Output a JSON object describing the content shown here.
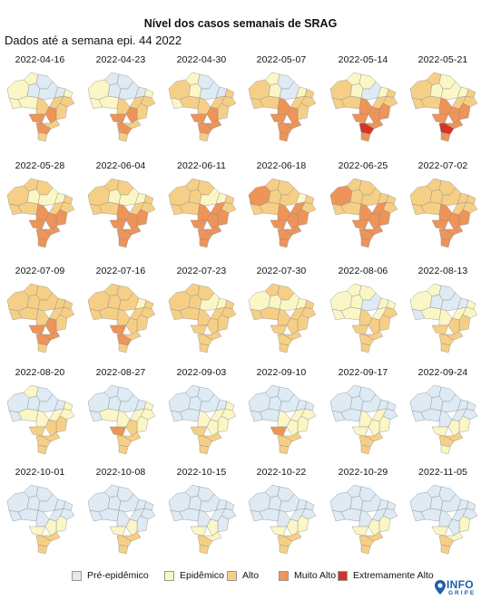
{
  "title": "Nível dos casos semanais de SRAG",
  "subtitle": "Dados até a semana epi. 44 2022",
  "legend": [
    {
      "label": "Pré-epidêmico",
      "color": "#deeaf4"
    },
    {
      "label": "Epidêmico",
      "color": "#fbf6c6"
    },
    {
      "label": "Alto",
      "color": "#f6cf86"
    },
    {
      "label": "Muito Alto",
      "color": "#ee9459"
    },
    {
      "label": "Extremamente Alto",
      "color": "#d3342a"
    }
  ],
  "logo": {
    "word1": "INFO",
    "word2": "GRIPE"
  },
  "maps": [
    {
      "date": "2022-04-16",
      "region_levels": [
        1,
        1,
        0,
        0,
        0,
        0,
        1,
        2,
        2,
        2,
        1,
        1,
        2,
        3,
        3,
        2,
        3,
        2
      ]
    },
    {
      "date": "2022-04-23",
      "region_levels": [
        1,
        0,
        0,
        0,
        0,
        0,
        1,
        2,
        2,
        2,
        1,
        1,
        2,
        3,
        3,
        2,
        3,
        2
      ]
    },
    {
      "date": "2022-04-30",
      "region_levels": [
        2,
        1,
        0,
        1,
        0,
        0,
        2,
        2,
        2,
        2,
        1,
        2,
        2,
        3,
        3,
        3,
        3,
        2
      ]
    },
    {
      "date": "2022-05-07",
      "region_levels": [
        2,
        1,
        0,
        1,
        0,
        1,
        2,
        2,
        2,
        2,
        2,
        2,
        3,
        3,
        3,
        3,
        3,
        3
      ]
    },
    {
      "date": "2022-05-14",
      "region_levels": [
        2,
        1,
        1,
        1,
        0,
        1,
        2,
        2,
        2,
        3,
        2,
        2,
        3,
        3,
        3,
        3,
        4,
        3
      ]
    },
    {
      "date": "2022-05-21",
      "region_levels": [
        2,
        2,
        1,
        1,
        1,
        1,
        2,
        2,
        2,
        3,
        2,
        2,
        3,
        3,
        3,
        3,
        4,
        3
      ]
    },
    {
      "date": "2022-05-28",
      "region_levels": [
        2,
        2,
        2,
        1,
        1,
        1,
        2,
        2,
        2,
        3,
        2,
        2,
        3,
        3,
        3,
        3,
        3,
        3
      ]
    },
    {
      "date": "2022-06-04",
      "region_levels": [
        2,
        2,
        2,
        1,
        1,
        1,
        2,
        2,
        2,
        3,
        2,
        2,
        3,
        3,
        3,
        3,
        3,
        3
      ]
    },
    {
      "date": "2022-06-11",
      "region_levels": [
        2,
        2,
        2,
        2,
        1,
        1,
        2,
        2,
        3,
        3,
        2,
        2,
        3,
        3,
        3,
        3,
        3,
        3
      ]
    },
    {
      "date": "2022-06-18",
      "region_levels": [
        3,
        2,
        2,
        2,
        2,
        1,
        2,
        2,
        3,
        3,
        2,
        2,
        3,
        3,
        3,
        3,
        3,
        3
      ]
    },
    {
      "date": "2022-06-25",
      "region_levels": [
        3,
        2,
        2,
        2,
        2,
        2,
        2,
        2,
        3,
        3,
        2,
        2,
        3,
        3,
        3,
        3,
        3,
        3
      ]
    },
    {
      "date": "2022-07-02",
      "region_levels": [
        2,
        2,
        2,
        2,
        2,
        2,
        2,
        2,
        2,
        3,
        2,
        2,
        3,
        3,
        3,
        3,
        3,
        3
      ]
    },
    {
      "date": "2022-07-09",
      "region_levels": [
        2,
        2,
        2,
        2,
        2,
        2,
        2,
        2,
        2,
        2,
        2,
        2,
        2,
        3,
        3,
        3,
        3,
        2
      ]
    },
    {
      "date": "2022-07-16",
      "region_levels": [
        2,
        2,
        2,
        2,
        2,
        1,
        2,
        2,
        2,
        2,
        2,
        2,
        2,
        2,
        3,
        2,
        3,
        2
      ]
    },
    {
      "date": "2022-07-23",
      "region_levels": [
        2,
        2,
        2,
        2,
        1,
        1,
        2,
        2,
        2,
        2,
        2,
        2,
        2,
        2,
        2,
        2,
        2,
        2
      ]
    },
    {
      "date": "2022-07-30",
      "region_levels": [
        1,
        2,
        2,
        1,
        1,
        1,
        2,
        2,
        2,
        2,
        2,
        2,
        2,
        2,
        2,
        2,
        2,
        2
      ]
    },
    {
      "date": "2022-08-06",
      "region_levels": [
        1,
        1,
        1,
        1,
        0,
        1,
        1,
        2,
        1,
        2,
        1,
        1,
        2,
        2,
        2,
        2,
        2,
        2
      ]
    },
    {
      "date": "2022-08-13",
      "region_levels": [
        1,
        1,
        0,
        0,
        0,
        0,
        1,
        1,
        1,
        2,
        0,
        1,
        1,
        2,
        2,
        2,
        2,
        2
      ]
    },
    {
      "date": "2022-08-20",
      "region_levels": [
        0,
        1,
        0,
        0,
        0,
        0,
        1,
        1,
        1,
        2,
        0,
        1,
        1,
        2,
        2,
        2,
        2,
        2
      ]
    },
    {
      "date": "2022-08-27",
      "region_levels": [
        0,
        0,
        0,
        0,
        0,
        0,
        1,
        1,
        1,
        1,
        0,
        1,
        1,
        2,
        3,
        2,
        2,
        2
      ]
    },
    {
      "date": "2022-09-03",
      "region_levels": [
        0,
        0,
        0,
        0,
        0,
        0,
        1,
        1,
        1,
        1,
        0,
        0,
        1,
        1,
        2,
        2,
        2,
        2
      ]
    },
    {
      "date": "2022-09-10",
      "region_levels": [
        0,
        0,
        0,
        0,
        0,
        0,
        0,
        1,
        1,
        1,
        0,
        0,
        1,
        1,
        3,
        2,
        2,
        2
      ]
    },
    {
      "date": "2022-09-17",
      "region_levels": [
        0,
        0,
        0,
        0,
        0,
        0,
        0,
        0,
        1,
        1,
        0,
        0,
        1,
        1,
        1,
        2,
        2,
        2
      ]
    },
    {
      "date": "2022-09-24",
      "region_levels": [
        0,
        0,
        0,
        0,
        0,
        0,
        0,
        0,
        0,
        1,
        0,
        0,
        0,
        1,
        1,
        2,
        2,
        1
      ]
    },
    {
      "date": "2022-10-01",
      "region_levels": [
        0,
        0,
        0,
        0,
        0,
        0,
        0,
        0,
        0,
        1,
        0,
        0,
        0,
        1,
        1,
        2,
        2,
        2
      ]
    },
    {
      "date": "2022-10-08",
      "region_levels": [
        0,
        0,
        0,
        0,
        0,
        0,
        0,
        0,
        0,
        0,
        0,
        0,
        0,
        1,
        1,
        2,
        2,
        2
      ]
    },
    {
      "date": "2022-10-15",
      "region_levels": [
        0,
        0,
        0,
        0,
        0,
        0,
        0,
        0,
        0,
        0,
        0,
        0,
        0,
        1,
        1,
        1,
        2,
        2
      ]
    },
    {
      "date": "2022-10-22",
      "region_levels": [
        0,
        0,
        0,
        0,
        0,
        0,
        0,
        0,
        0,
        1,
        0,
        0,
        0,
        1,
        1,
        2,
        2,
        2
      ]
    },
    {
      "date": "2022-10-29",
      "region_levels": [
        0,
        0,
        0,
        0,
        0,
        0,
        0,
        0,
        0,
        1,
        0,
        0,
        0,
        1,
        1,
        2,
        2,
        2
      ]
    },
    {
      "date": "2022-11-05",
      "region_levels": [
        0,
        0,
        0,
        0,
        0,
        0,
        0,
        0,
        0,
        1,
        0,
        0,
        0,
        0,
        1,
        1,
        2,
        2
      ]
    }
  ]
}
